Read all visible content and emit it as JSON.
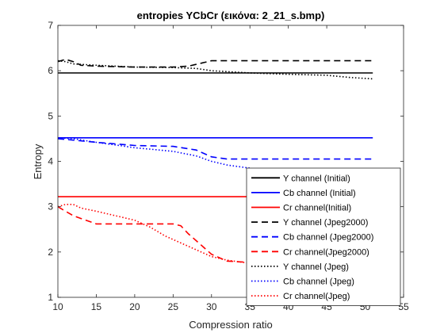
{
  "chart_data": {
    "type": "line",
    "title": "entropies YCbCr (εικόνα: 2_21_s.bmp)",
    "xlabel": "Compression ratio",
    "ylabel": "Entropy",
    "xlim": [
      10,
      55
    ],
    "ylim": [
      1,
      7
    ],
    "xticks": [
      "10",
      "15",
      "20",
      "25",
      "30",
      "35",
      "40",
      "45",
      "50",
      "55"
    ],
    "yticks": [
      "1",
      "2",
      "3",
      "4",
      "5",
      "6",
      "7"
    ],
    "grid": false,
    "legend_position": "bottom-right inside",
    "series": [
      {
        "name": "Y channel (Initial)",
        "color": "#000000",
        "dash": "solid",
        "x": [
          10,
          51
        ],
        "y": [
          5.95,
          5.95
        ]
      },
      {
        "name": "Cb channel (Initial)",
        "color": "#0000ff",
        "dash": "solid",
        "x": [
          10,
          51
        ],
        "y": [
          4.52,
          4.52
        ]
      },
      {
        "name": "Cr channel(Initial)",
        "color": "#ff0000",
        "dash": "solid",
        "x": [
          10,
          51
        ],
        "y": [
          3.22,
          3.22
        ]
      },
      {
        "name": "Y channel (Jpeg2000)",
        "color": "#000000",
        "dash": "dashed",
        "x": [
          10,
          11,
          12,
          13,
          15,
          20,
          25,
          27,
          29,
          30,
          35,
          40,
          45,
          51
        ],
        "y": [
          6.2,
          6.25,
          6.2,
          6.12,
          6.1,
          6.08,
          6.08,
          6.1,
          6.18,
          6.22,
          6.22,
          6.22,
          6.22,
          6.22
        ]
      },
      {
        "name": "Cb channel (Jpeg2000)",
        "color": "#0000ff",
        "dash": "dashed",
        "x": [
          10,
          15,
          20,
          25,
          28,
          30,
          32,
          35,
          40,
          45,
          51
        ],
        "y": [
          4.5,
          4.42,
          4.35,
          4.33,
          4.25,
          4.1,
          4.05,
          4.05,
          4.05,
          4.05,
          4.05
        ]
      },
      {
        "name": "Cr channel(Jpeg2000)",
        "color": "#ff0000",
        "dash": "dashed",
        "x": [
          10,
          12,
          15,
          17,
          20,
          22,
          25,
          26,
          27,
          28,
          29,
          30,
          32,
          34,
          35
        ],
        "y": [
          3.0,
          2.8,
          2.62,
          2.62,
          2.62,
          2.62,
          2.62,
          2.58,
          2.4,
          2.25,
          2.1,
          1.95,
          1.8,
          1.78,
          1.78
        ]
      },
      {
        "name": "Y channel (Jpeg)",
        "color": "#000000",
        "dash": "dotted",
        "x": [
          10,
          11,
          12,
          15,
          20,
          25,
          28,
          30,
          35,
          40,
          45,
          48,
          51
        ],
        "y": [
          6.22,
          6.2,
          6.15,
          6.12,
          6.08,
          6.07,
          6.05,
          6.0,
          5.95,
          5.92,
          5.9,
          5.85,
          5.82
        ]
      },
      {
        "name": "Cb channel (Jpeg)",
        "color": "#0000ff",
        "dash": "dotted",
        "x": [
          10,
          12,
          15,
          18,
          20,
          22,
          25,
          28,
          30,
          32,
          35
        ],
        "y": [
          4.52,
          4.5,
          4.42,
          4.35,
          4.3,
          4.27,
          4.22,
          4.12,
          4.0,
          3.92,
          3.85
        ]
      },
      {
        "name": "Cr channel(Jpeg)",
        "color": "#ff0000",
        "dash": "dotted",
        "x": [
          10,
          11,
          12,
          13,
          15,
          18,
          20,
          22,
          24,
          26,
          28,
          30,
          32,
          35
        ],
        "y": [
          3.0,
          3.05,
          3.05,
          2.97,
          2.9,
          2.78,
          2.7,
          2.55,
          2.35,
          2.2,
          2.05,
          1.9,
          1.82,
          1.75
        ]
      }
    ]
  }
}
